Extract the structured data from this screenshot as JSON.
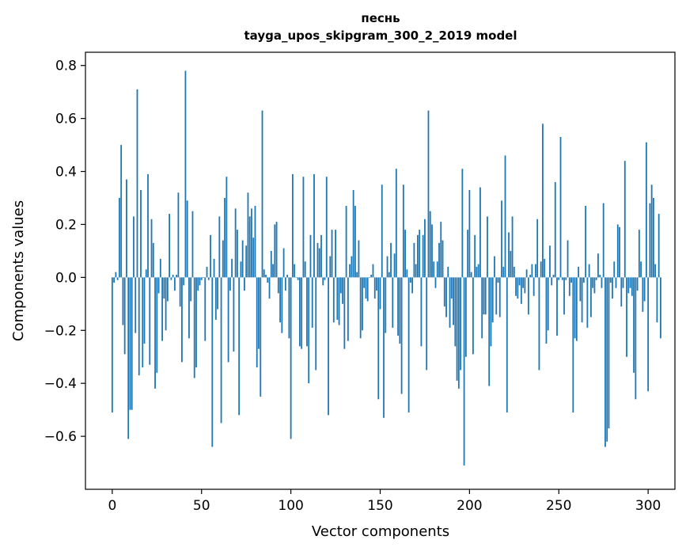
{
  "chart_data": {
    "type": "bar",
    "title_line1": "песнь",
    "title_line2": "tayga_upos_skipgram_300_2_2019 model",
    "xlabel": "Vector components",
    "ylabel": "Components values",
    "xlim": [
      -15,
      315
    ],
    "ylim": [
      -0.8,
      0.85
    ],
    "xticks": [
      0,
      50,
      100,
      150,
      200,
      250,
      300
    ],
    "xtick_labels": [
      "0",
      "50",
      "100",
      "150",
      "200",
      "250",
      "300"
    ],
    "yticks": [
      -0.6,
      -0.4,
      -0.2,
      0.0,
      0.2,
      0.4,
      0.6,
      0.8
    ],
    "ytick_labels": [
      "−0.6",
      "−0.4",
      "−0.2",
      "0.0",
      "0.2",
      "0.4",
      "0.6",
      "0.8"
    ],
    "bar_color": "#1f77b4",
    "values": [
      -0.51,
      -0.02,
      0.02,
      -0.01,
      0.3,
      0.5,
      -0.18,
      -0.29,
      0.37,
      -0.61,
      -0.5,
      -0.5,
      0.23,
      -0.21,
      0.71,
      -0.37,
      0.33,
      -0.34,
      -0.25,
      0.03,
      0.39,
      -0.33,
      0.22,
      0.13,
      -0.42,
      -0.36,
      -0.06,
      0.07,
      -0.24,
      -0.08,
      -0.2,
      -0.09,
      0.24,
      -0.01,
      0.01,
      -0.05,
      0.01,
      0.32,
      -0.11,
      -0.32,
      -0.03,
      0.78,
      0.29,
      -0.23,
      -0.09,
      0.25,
      -0.38,
      -0.34,
      -0.05,
      -0.03,
      -0.01,
      0.0,
      -0.24,
      0.04,
      -0.01,
      0.16,
      -0.64,
      0.07,
      -0.16,
      -0.12,
      0.23,
      -0.55,
      0.14,
      0.3,
      0.38,
      -0.32,
      -0.05,
      0.07,
      -0.28,
      0.26,
      0.18,
      -0.52,
      0.06,
      0.14,
      -0.05,
      0.12,
      0.32,
      0.23,
      0.26,
      0.15,
      0.27,
      -0.34,
      -0.27,
      -0.45,
      0.63,
      0.03,
      0.01,
      -0.02,
      -0.08,
      0.1,
      0.05,
      0.2,
      0.21,
      -0.06,
      -0.17,
      -0.21,
      0.11,
      -0.05,
      0.01,
      -0.23,
      -0.61,
      0.39,
      0.05,
      0.0,
      -0.01,
      -0.26,
      -0.27,
      0.38,
      0.06,
      -0.26,
      -0.4,
      0.16,
      -0.19,
      0.39,
      -0.35,
      0.13,
      0.11,
      0.16,
      -0.03,
      -0.01,
      0.38,
      -0.52,
      0.08,
      0.18,
      -0.17,
      0.18,
      -0.16,
      -0.18,
      -0.06,
      -0.1,
      -0.27,
      0.27,
      -0.24,
      0.05,
      0.08,
      0.33,
      0.27,
      0.02,
      0.14,
      -0.23,
      -0.2,
      -0.04,
      -0.08,
      -0.09,
      0.0,
      0.01,
      0.05,
      -0.08,
      -0.05,
      -0.46,
      -0.12,
      0.35,
      -0.53,
      -0.21,
      0.08,
      0.02,
      0.13,
      -0.19,
      0.09,
      0.41,
      -0.22,
      -0.25,
      -0.44,
      0.35,
      0.18,
      0.03,
      -0.51,
      -0.02,
      -0.06,
      0.13,
      0.05,
      0.16,
      0.18,
      -0.26,
      0.16,
      0.22,
      -0.35,
      0.63,
      0.25,
      0.2,
      0.06,
      -0.04,
      0.06,
      0.13,
      0.21,
      0.14,
      -0.11,
      -0.15,
      0.04,
      -0.19,
      -0.08,
      -0.18,
      -0.26,
      -0.39,
      -0.42,
      -0.35,
      0.41,
      -0.71,
      -0.3,
      0.18,
      0.33,
      0.02,
      -0.29,
      0.16,
      0.04,
      0.05,
      0.34,
      -0.23,
      -0.14,
      -0.14,
      0.23,
      -0.41,
      -0.26,
      -0.17,
      0.08,
      -0.14,
      -0.02,
      -0.15,
      0.29,
      0.04,
      0.46,
      -0.51,
      0.17,
      0.1,
      0.23,
      0.04,
      -0.07,
      -0.08,
      -0.03,
      -0.1,
      -0.04,
      -0.06,
      0.03,
      -0.14,
      0.01,
      0.05,
      -0.07,
      0.05,
      0.22,
      -0.35,
      0.06,
      0.58,
      0.07,
      -0.25,
      -0.2,
      0.12,
      -0.03,
      0.01,
      0.36,
      -0.22,
      -0.01,
      0.53,
      -0.01,
      -0.14,
      -0.01,
      0.14,
      -0.07,
      -0.02,
      -0.51,
      -0.23,
      -0.24,
      0.04,
      -0.09,
      -0.17,
      -0.02,
      0.27,
      -0.19,
      0.05,
      -0.15,
      -0.04,
      -0.06,
      -0.01,
      0.09,
      0.01,
      -0.04,
      0.28,
      -0.64,
      -0.62,
      -0.57,
      -0.02,
      -0.08,
      0.06,
      -0.04,
      0.2,
      0.19,
      -0.11,
      -0.04,
      0.44,
      -0.3,
      -0.06,
      -0.04,
      -0.07,
      -0.36,
      -0.46,
      -0.05,
      0.18,
      0.06,
      -0.13,
      -0.09,
      0.51,
      -0.43,
      0.28,
      0.35,
      0.3,
      0.05,
      -0.17,
      0.24,
      -0.23
    ]
  }
}
